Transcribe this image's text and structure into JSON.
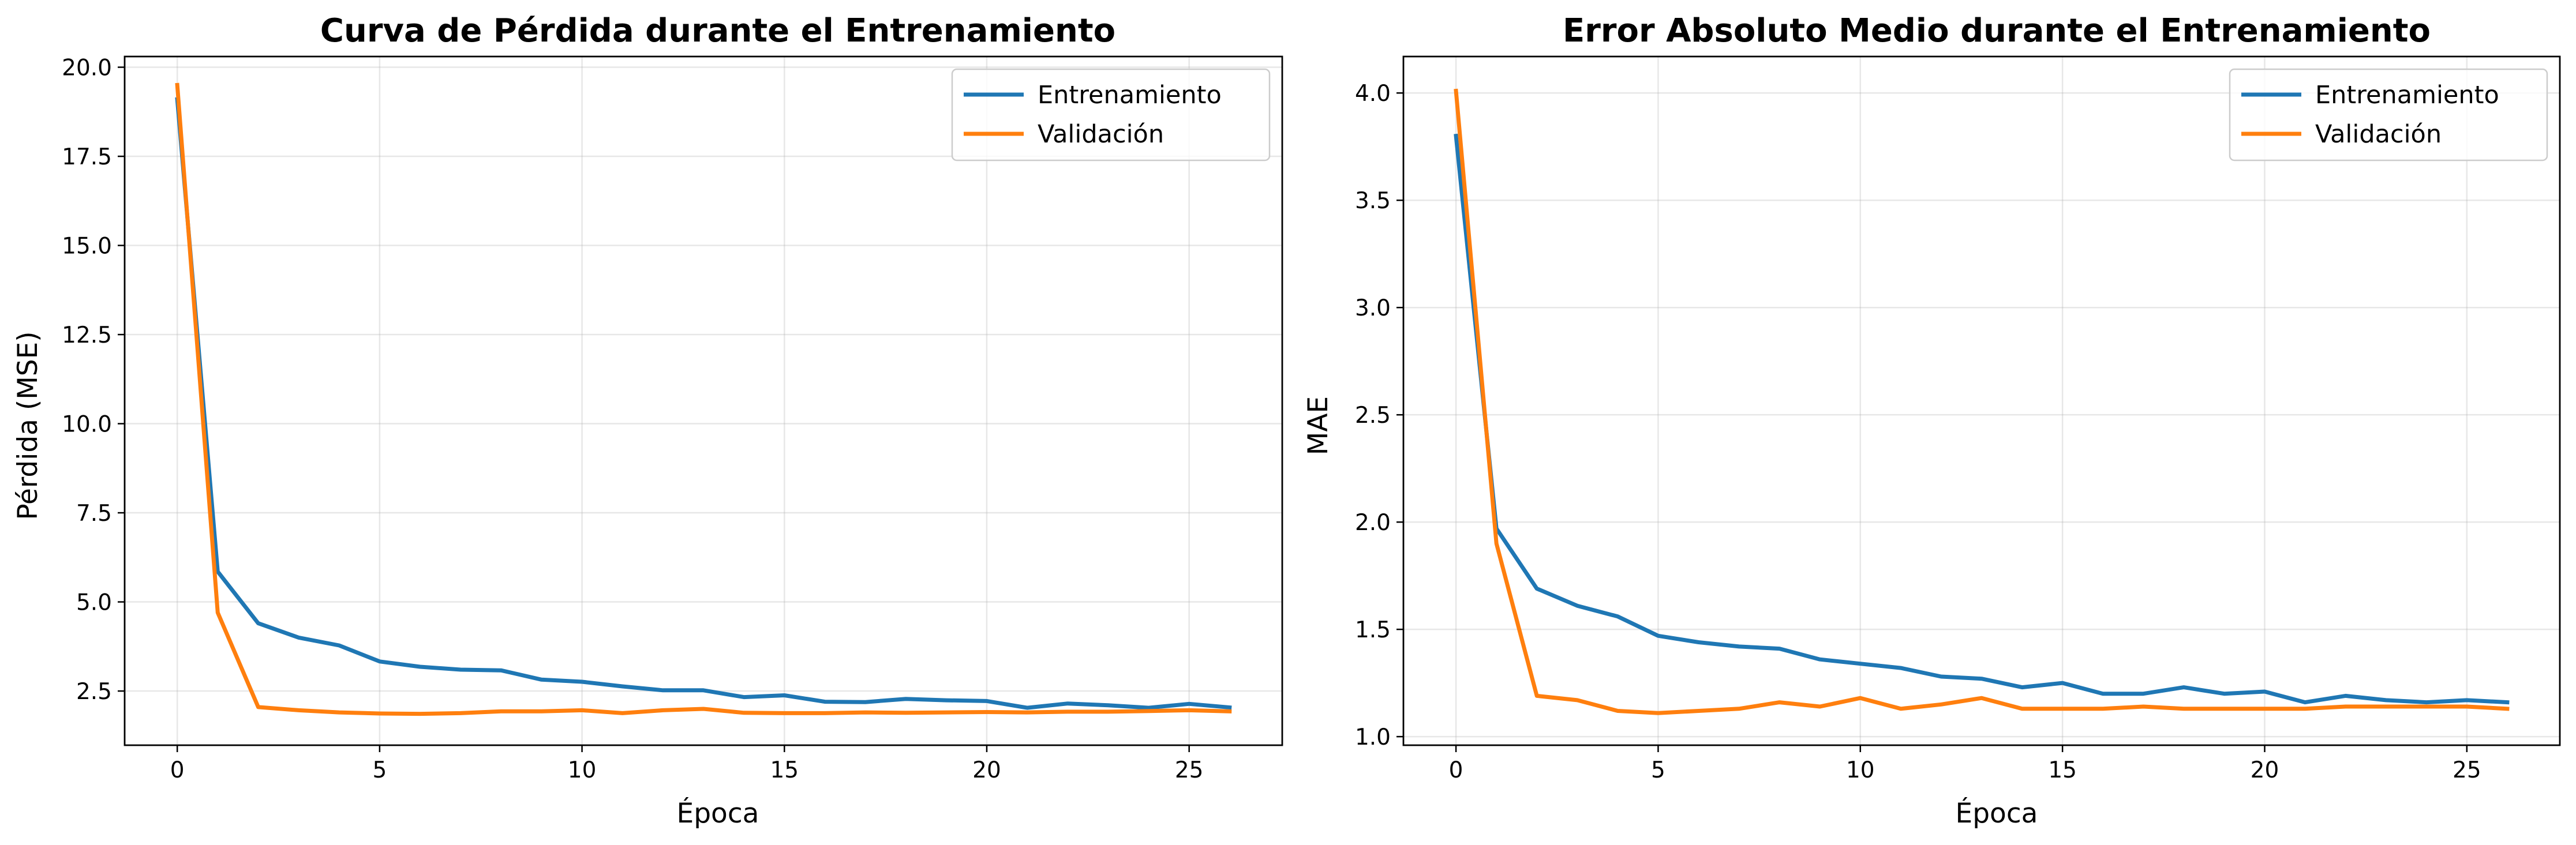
{
  "colors": {
    "train": "#1f77b4",
    "val": "#ff7f0e"
  },
  "chart_data": [
    {
      "type": "line",
      "title": "Curva de Pérdida durante el Entrenamiento",
      "xlabel": "Época",
      "ylabel": "Pérdida (MSE)",
      "xlim": [
        -1.3,
        27.3
      ],
      "ylim": [
        0.98,
        20.3
      ],
      "xticks": [
        0,
        5,
        10,
        15,
        20,
        25
      ],
      "xtick_labels": [
        "0",
        "5",
        "10",
        "15",
        "20",
        "25"
      ],
      "yticks": [
        2.5,
        5.0,
        7.5,
        10.0,
        12.5,
        15.0,
        17.5,
        20.0
      ],
      "ytick_labels": [
        "2.5",
        "5.0",
        "7.5",
        "10.0",
        "12.5",
        "15.0",
        "17.5",
        "20.0"
      ],
      "grid": true,
      "legend_position": "top-right",
      "x": [
        0,
        1,
        2,
        3,
        4,
        5,
        6,
        7,
        8,
        9,
        10,
        11,
        12,
        13,
        14,
        15,
        16,
        17,
        18,
        19,
        20,
        21,
        22,
        23,
        24,
        25,
        26
      ],
      "series": [
        {
          "name": "Entrenamiento",
          "color_key": "train",
          "values": [
            19.1,
            5.85,
            4.4,
            4.0,
            3.78,
            3.33,
            3.18,
            3.1,
            3.08,
            2.82,
            2.76,
            2.63,
            2.52,
            2.52,
            2.33,
            2.38,
            2.2,
            2.19,
            2.28,
            2.24,
            2.22,
            2.03,
            2.15,
            2.1,
            2.03,
            2.14,
            2.04
          ]
        },
        {
          "name": "Validación",
          "color_key": "val",
          "values": [
            19.5,
            4.7,
            2.05,
            1.96,
            1.9,
            1.87,
            1.86,
            1.88,
            1.93,
            1.93,
            1.96,
            1.88,
            1.96,
            2.0,
            1.89,
            1.88,
            1.88,
            1.9,
            1.89,
            1.9,
            1.91,
            1.9,
            1.92,
            1.92,
            1.94,
            1.96,
            1.93
          ]
        }
      ]
    },
    {
      "type": "line",
      "title": "Error Absoluto Medio durante el Entrenamiento",
      "xlabel": "Época",
      "ylabel": "MAE",
      "xlim": [
        -1.3,
        27.3
      ],
      "ylim": [
        0.96,
        4.17
      ],
      "xticks": [
        0,
        5,
        10,
        15,
        20,
        25
      ],
      "xtick_labels": [
        "0",
        "5",
        "10",
        "15",
        "20",
        "25"
      ],
      "yticks": [
        1.0,
        1.5,
        2.0,
        2.5,
        3.0,
        3.5,
        4.0
      ],
      "ytick_labels": [
        "1.0",
        "1.5",
        "2.0",
        "2.5",
        "3.0",
        "3.5",
        "4.0"
      ],
      "grid": true,
      "legend_position": "top-right",
      "x": [
        0,
        1,
        2,
        3,
        4,
        5,
        6,
        7,
        8,
        9,
        10,
        11,
        12,
        13,
        14,
        15,
        16,
        17,
        18,
        19,
        20,
        21,
        22,
        23,
        24,
        25,
        26
      ],
      "series": [
        {
          "name": "Entrenamiento",
          "color_key": "train",
          "values": [
            3.8,
            1.97,
            1.69,
            1.61,
            1.56,
            1.47,
            1.44,
            1.42,
            1.41,
            1.36,
            1.34,
            1.32,
            1.28,
            1.27,
            1.23,
            1.25,
            1.2,
            1.2,
            1.23,
            1.2,
            1.21,
            1.16,
            1.19,
            1.17,
            1.16,
            1.17,
            1.16
          ]
        },
        {
          "name": "Validación",
          "color_key": "val",
          "values": [
            4.01,
            1.9,
            1.19,
            1.17,
            1.12,
            1.11,
            1.12,
            1.13,
            1.16,
            1.14,
            1.18,
            1.13,
            1.15,
            1.18,
            1.13,
            1.13,
            1.13,
            1.14,
            1.13,
            1.13,
            1.13,
            1.13,
            1.14,
            1.14,
            1.14,
            1.14,
            1.13
          ]
        }
      ]
    }
  ]
}
